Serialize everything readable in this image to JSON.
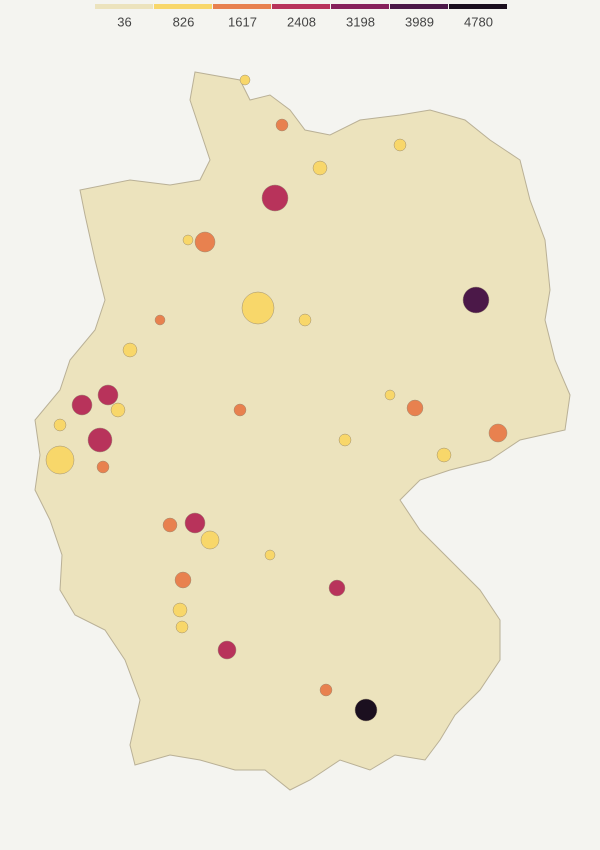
{
  "chart_data": {
    "type": "choropleth",
    "legend": {
      "ticks": [
        36,
        826,
        1617,
        2408,
        3198,
        3989,
        4780
      ],
      "colors": [
        "#ece3bd",
        "#f8d76a",
        "#e8814f",
        "#b8335b",
        "#86205b",
        "#4b1848",
        "#1b0f1f"
      ]
    },
    "regions": {
      "values": [
        4780,
        4300,
        2700,
        2800,
        2900,
        2500,
        2700,
        2600,
        2500,
        2300,
        1800,
        1700,
        1700,
        1900,
        2200,
        1100,
        900,
        2000,
        1500,
        1700,
        1200,
        1300,
        1000,
        1600,
        1800,
        1200,
        1100,
        1700,
        1400,
        1500,
        1300,
        1100,
        900,
        1000,
        1600,
        1400
      ]
    }
  }
}
